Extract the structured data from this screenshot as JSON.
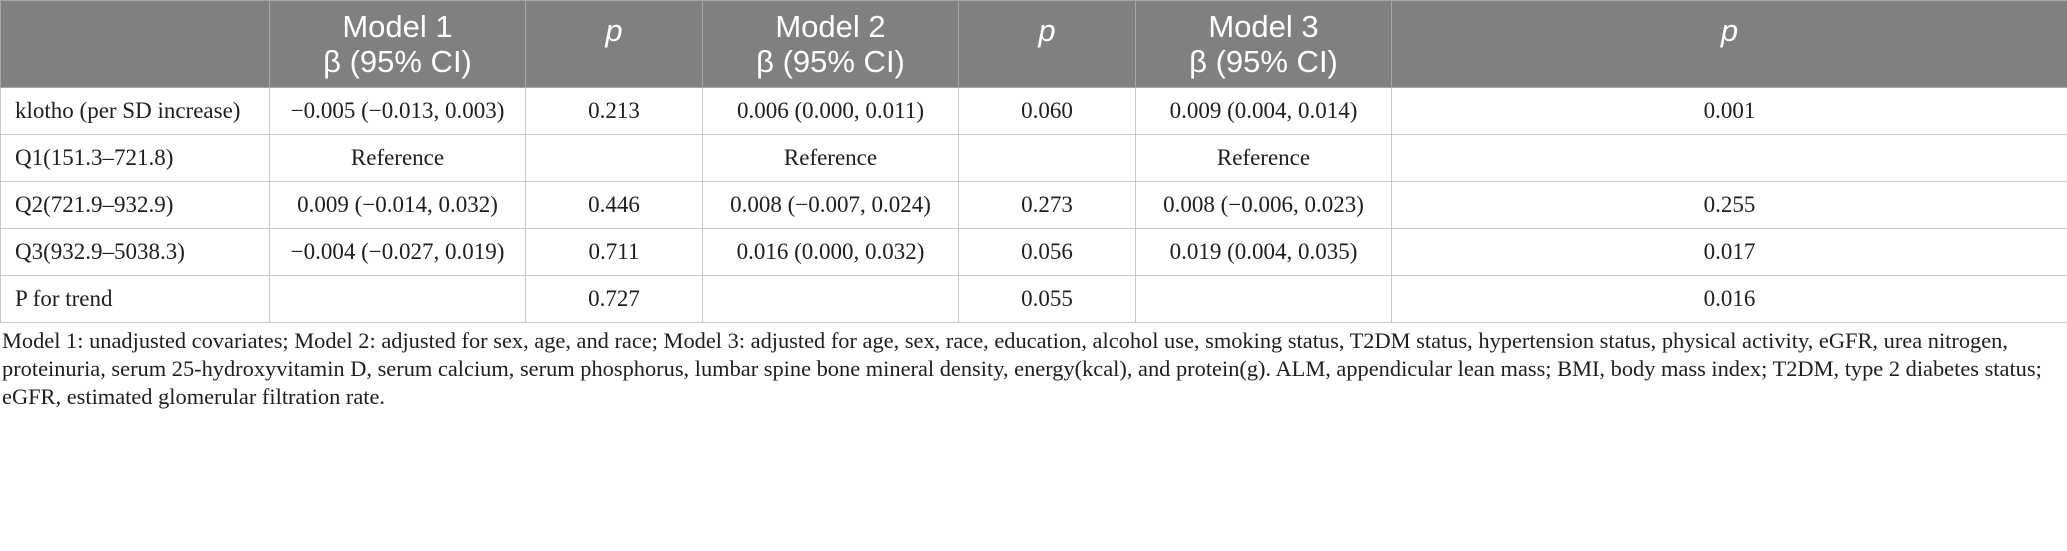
{
  "table": {
    "headers": [
      {
        "line1": "",
        "line2": ""
      },
      {
        "line1": "Model 1",
        "line2": "β (95% CI)"
      },
      {
        "line1": "p",
        "line2": ""
      },
      {
        "line1": "Model 2",
        "line2": "β (95% CI)"
      },
      {
        "line1": "p",
        "line2": ""
      },
      {
        "line1": "Model 3",
        "line2": "β (95% CI)"
      },
      {
        "line1": "p",
        "line2": ""
      }
    ],
    "rows": [
      [
        "klotho (per SD increase)",
        "−0.005 (−0.013, 0.003)",
        "0.213",
        "0.006 (0.000, 0.011)",
        "0.060",
        "0.009 (0.004, 0.014)",
        "0.001"
      ],
      [
        "Q1(151.3–721.8)",
        "Reference",
        "",
        "Reference",
        "",
        "Reference",
        ""
      ],
      [
        "Q2(721.9–932.9)",
        "0.009 (−0.014, 0.032)",
        "0.446",
        "0.008 (−0.007, 0.024)",
        "0.273",
        "0.008 (−0.006, 0.023)",
        "0.255"
      ],
      [
        "Q3(932.9–5038.3)",
        "−0.004 (−0.027, 0.019)",
        "0.711",
        "0.016 (0.000, 0.032)",
        "0.056",
        "0.019 (0.004, 0.035)",
        "0.017"
      ],
      [
        "P for trend",
        "",
        "0.727",
        "",
        "0.055",
        "",
        "0.016"
      ]
    ]
  },
  "footnote": "Model 1: unadjusted covariates; Model 2: adjusted for sex, age, and race; Model 3: adjusted for age, sex, race, education, alcohol use, smoking status, T2DM status, hypertension status, physical activity, eGFR, urea nitrogen, proteinuria, serum 25-hydroxyvitamin D, serum calcium, serum phosphorus, lumbar spine bone mineral density, energy(kcal), and protein(g). ALM, appendicular lean mass; BMI, body mass index; T2DM, type 2 diabetes status; eGFR, estimated glomerular filtration rate."
}
